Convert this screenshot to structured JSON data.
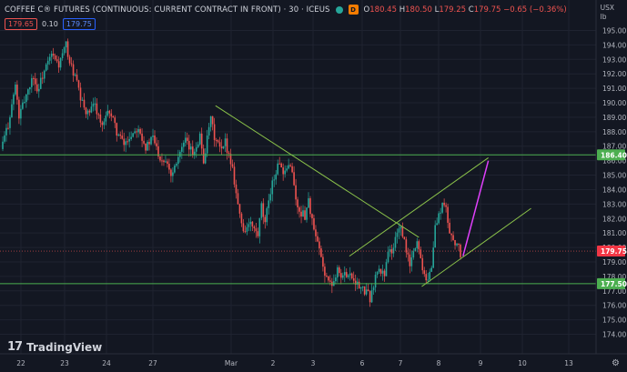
{
  "header": {
    "title": "COFFEE C® FUTURES (CONTINUOUS: CURRENT CONTRACT IN FRONT) · 30 · ICEUS",
    "badge": "D",
    "open_label": "O",
    "open": "180.45",
    "high_label": "H",
    "high": "180.50",
    "low_label": "L",
    "low": "179.25",
    "close_label": "C",
    "close": "179.75",
    "change": "−0.65 (−0.36%)"
  },
  "quote": {
    "sell": "179.65",
    "spread": "0.10",
    "buy": "179.75"
  },
  "unit": {
    "currency": "USX",
    "measure": "lb"
  },
  "brand": {
    "name": "TradingView"
  },
  "colors": {
    "background": "#131722",
    "up": "#26a69a",
    "down": "#ef5350",
    "level_line": "#4caf50",
    "trend_line": "#8bc34a",
    "projection": "#e040fb",
    "price_tag": "#f23645"
  },
  "chart_data": {
    "type": "candlestick",
    "x_tick_labels": [
      "22",
      "23",
      "24",
      "27",
      "Mar",
      "2",
      "3",
      "6",
      "7",
      "8",
      "9",
      "10",
      "13"
    ],
    "y_tick_labels": [
      "174.00",
      "175.00",
      "176.00",
      "177.00",
      "178.00",
      "179.00",
      "180.00",
      "181.00",
      "182.00",
      "183.00",
      "184.00",
      "185.00",
      "186.00",
      "187.00",
      "188.00",
      "189.00",
      "190.00",
      "191.00",
      "192.00",
      "193.00",
      "194.00",
      "195.00"
    ],
    "ylim": [
      173.8,
      195.8
    ],
    "horizontal_levels": [
      {
        "value": 186.4,
        "label": "186.40"
      },
      {
        "value": 177.5,
        "label": "177.50"
      }
    ],
    "last_price": {
      "value": 179.75,
      "label": "179.75"
    },
    "trend_lines": [
      {
        "from": [
          58.8,
          189.8
        ],
        "to": [
          115.0,
          180.7
        ]
      },
      {
        "from": [
          95.8,
          179.4
        ],
        "to": [
          134.2,
          186.2
        ]
      },
      {
        "from": [
          115.8,
          177.3
        ],
        "to": [
          146.0,
          182.7
        ]
      }
    ],
    "projection_line": {
      "from": [
        127.2,
        179.4
      ],
      "to": [
        134.2,
        186.0
      ]
    },
    "price_path": [
      [
        0,
        186.8
      ],
      [
        2,
        188.5
      ],
      [
        4,
        191.2
      ],
      [
        5,
        189.0
      ],
      [
        7,
        190.6
      ],
      [
        9,
        191.9
      ],
      [
        10,
        190.8
      ],
      [
        12,
        192.2
      ],
      [
        14,
        193.3
      ],
      [
        16,
        192.6
      ],
      [
        18,
        194.0
      ],
      [
        19,
        192.8
      ],
      [
        21,
        191.4
      ],
      [
        22,
        190.2
      ],
      [
        24,
        189.2
      ],
      [
        26,
        189.9
      ],
      [
        28,
        188.3
      ],
      [
        30,
        189.5
      ],
      [
        32,
        188.0
      ],
      [
        34,
        187.1
      ],
      [
        36,
        187.8
      ],
      [
        38,
        188.4
      ],
      [
        40,
        186.9
      ],
      [
        42,
        187.6
      ],
      [
        44,
        186.2
      ],
      [
        46,
        186.0
      ],
      [
        47,
        185.0
      ],
      [
        49,
        186.4
      ],
      [
        51,
        187.3
      ],
      [
        53,
        186.5
      ],
      [
        55,
        187.7
      ],
      [
        56,
        186.0
      ],
      [
        58,
        188.9
      ],
      [
        59,
        187.6
      ],
      [
        61,
        186.6
      ],
      [
        62,
        187.3
      ],
      [
        64,
        185.5
      ],
      [
        65,
        183.8
      ],
      [
        66,
        182.2
      ],
      [
        67,
        181.2
      ],
      [
        69,
        181.6
      ],
      [
        71,
        180.8
      ],
      [
        72,
        182.8
      ],
      [
        73,
        181.5
      ],
      [
        74,
        183.4
      ],
      [
        75,
        184.5
      ],
      [
        76,
        185.2
      ],
      [
        77,
        186.0
      ],
      [
        78,
        184.8
      ],
      [
        80,
        185.9
      ],
      [
        81,
        184.3
      ],
      [
        82,
        182.6
      ],
      [
        84,
        182.2
      ],
      [
        85,
        183.3
      ],
      [
        86,
        181.8
      ],
      [
        87,
        180.6
      ],
      [
        88,
        179.8
      ],
      [
        89,
        178.6
      ],
      [
        90,
        178.0
      ],
      [
        91,
        177.4
      ],
      [
        92,
        177.7
      ],
      [
        93,
        178.7
      ],
      [
        94,
        177.9
      ],
      [
        96,
        178.3
      ],
      [
        98,
        177.7
      ],
      [
        99,
        177.2
      ],
      [
        101,
        176.9
      ],
      [
        102,
        176.5
      ],
      [
        103,
        177.4
      ],
      [
        104,
        178.4
      ],
      [
        106,
        178.2
      ],
      [
        107,
        179.9
      ],
      [
        108,
        179.5
      ],
      [
        109,
        180.6
      ],
      [
        110,
        181.5
      ],
      [
        111,
        180.8
      ],
      [
        112,
        179.8
      ],
      [
        113,
        178.8
      ],
      [
        114,
        179.6
      ],
      [
        115,
        180.5
      ],
      [
        116,
        179.2
      ],
      [
        117,
        178.2
      ],
      [
        118,
        177.8
      ],
      [
        119,
        178.7
      ],
      [
        120,
        181.4
      ],
      [
        121,
        182.2
      ],
      [
        122,
        183.0
      ],
      [
        123,
        182.6
      ],
      [
        124,
        181.0
      ],
      [
        125,
        180.6
      ],
      [
        126,
        180.2
      ],
      [
        127,
        179.6
      ],
      [
        127.4,
        179.75
      ]
    ]
  }
}
